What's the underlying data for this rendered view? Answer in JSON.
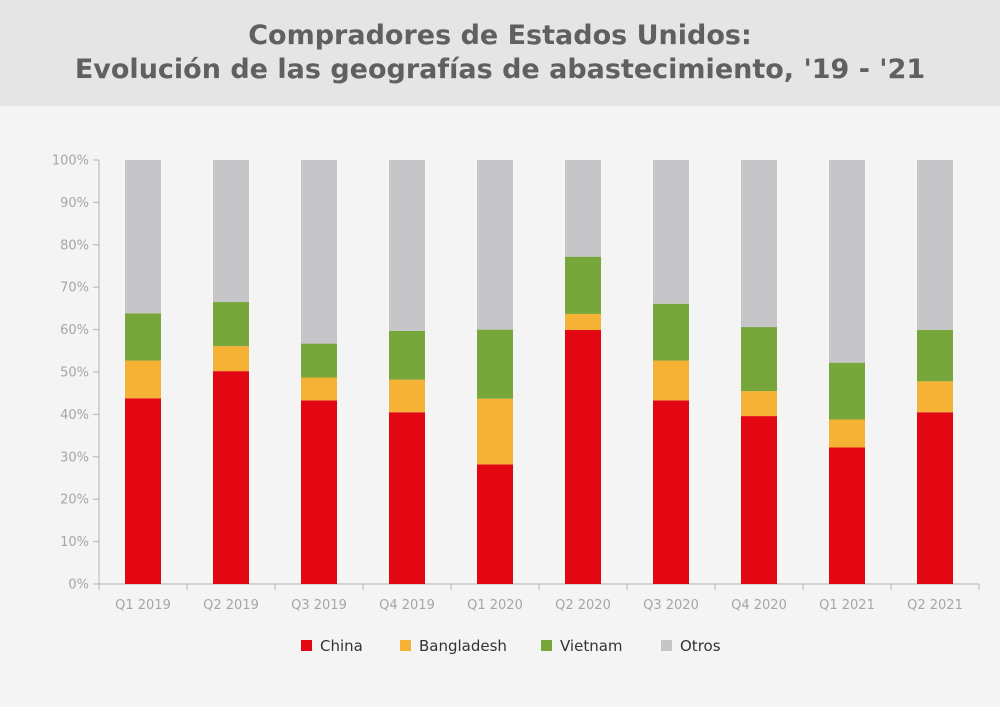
{
  "header": {
    "title_line1": "Compradores de Estados Unidos:",
    "title_line2": "Evolución de las geografías de abastecimiento, '19 - '21"
  },
  "chart_data": {
    "type": "bar",
    "stacked": true,
    "title": "Compradores de Estados Unidos: Evolución de las geografías de abastecimiento, '19 - '21",
    "xlabel": "",
    "ylabel": "",
    "ylim": [
      0,
      100
    ],
    "yticks": [
      "0%",
      "10%",
      "20%",
      "30%",
      "40%",
      "50%",
      "60%",
      "70%",
      "80%",
      "90%",
      "100%"
    ],
    "categories": [
      "Q1 2019",
      "Q2 2019",
      "Q3 2019",
      "Q4 2019",
      "Q1 2020",
      "Q2 2020",
      "Q3 2020",
      "Q4 2020",
      "Q1 2021",
      "Q2 2021"
    ],
    "series": [
      {
        "name": "China",
        "color": "#e30613",
        "values": [
          43.8,
          50.2,
          43.3,
          40.5,
          28.2,
          59.9,
          43.3,
          39.6,
          32.2,
          40.5
        ]
      },
      {
        "name": "Bangladesh",
        "color": "#f5b235",
        "values": [
          8.9,
          5.9,
          5.4,
          7.7,
          15.5,
          3.8,
          9.4,
          5.9,
          6.6,
          7.3
        ]
      },
      {
        "name": "Vietnam",
        "color": "#77a73a",
        "values": [
          11.1,
          10.4,
          8.0,
          11.5,
          16.3,
          13.5,
          13.4,
          15.1,
          13.4,
          12.1
        ]
      },
      {
        "name": "Otros",
        "color": "#c6c6c8",
        "values": [
          36.2,
          33.5,
          43.3,
          40.3,
          40.0,
          22.8,
          33.9,
          39.4,
          47.8,
          40.1
        ]
      }
    ],
    "grid": false,
    "legend_position": "bottom"
  }
}
